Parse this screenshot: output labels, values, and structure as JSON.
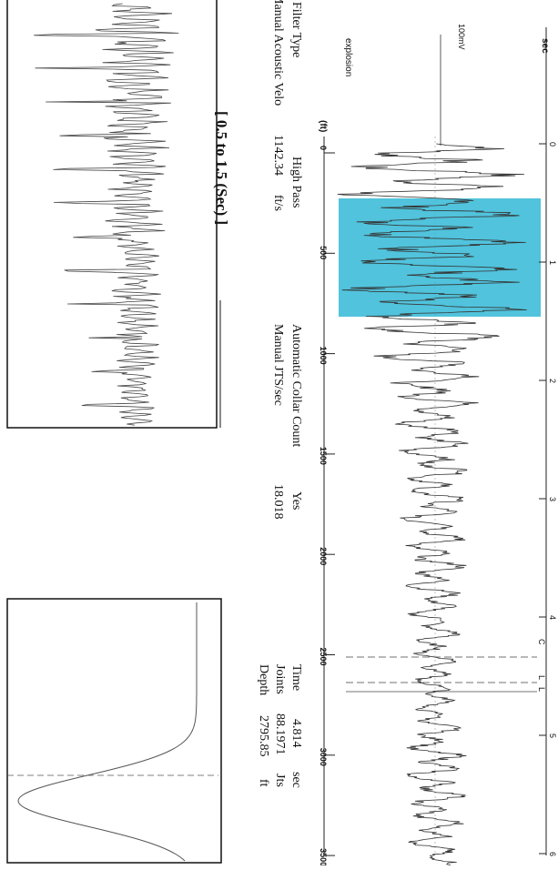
{
  "chart_data": {
    "type": "line",
    "orientation": "rotated-90-clockwise",
    "title": "",
    "top_axis": {
      "label": "sec",
      "ticks": [
        "0",
        "1",
        "2",
        "3",
        "4",
        "5",
        "6"
      ]
    },
    "bottom_axis": {
      "label": "(ft)",
      "ticks": [
        "0",
        "500",
        "1000",
        "1500",
        "2000",
        "2500",
        "3000",
        "3500"
      ]
    },
    "annotations": {
      "scale_bar": "100mV",
      "event": "explosion",
      "markers": [
        "C",
        "L",
        "L"
      ]
    },
    "zoom_label": "[ 0.5  to  1.5 (Sec) ]",
    "waveform_envelope": [
      {
        "t": 0.0,
        "a": 0.05
      },
      {
        "t": 0.05,
        "a": 0.95
      },
      {
        "t": 0.6,
        "a": 0.98
      },
      {
        "t": 1.0,
        "a": 0.98
      },
      {
        "t": 1.5,
        "a": 0.9
      },
      {
        "t": 1.8,
        "a": 0.6
      },
      {
        "t": 2.2,
        "a": 0.45
      },
      {
        "t": 2.8,
        "a": 0.38
      },
      {
        "t": 3.4,
        "a": 0.35
      },
      {
        "t": 4.0,
        "a": 0.28
      },
      {
        "t": 4.8,
        "a": 0.22
      },
      {
        "t": 5.2,
        "a": 0.35
      },
      {
        "t": 6.2,
        "a": 0.25
      }
    ],
    "highlight_region_sec": [
      0.5,
      1.5
    ],
    "highlight_color": "#33b8d6"
  },
  "info": {
    "filter_type_label": "Filter Type",
    "filter_type_value": "High Pass",
    "velocity_label": "Manual Acoustic Velo",
    "velocity_value": "1142.34",
    "velocity_unit": "ft/s",
    "collar_label": "Automatic Collar Count",
    "collar_value": "Yes",
    "jts_label": "Manual JTS/sec",
    "jts_value": "18.018",
    "time_label": "Time",
    "time_value": "4.814",
    "time_unit": "sec",
    "joints_label": "Joints",
    "joints_value": "88.1971",
    "joints_unit": "Jts",
    "depth_label": "Depth",
    "depth_value": "2795.85",
    "depth_unit": "ft"
  }
}
